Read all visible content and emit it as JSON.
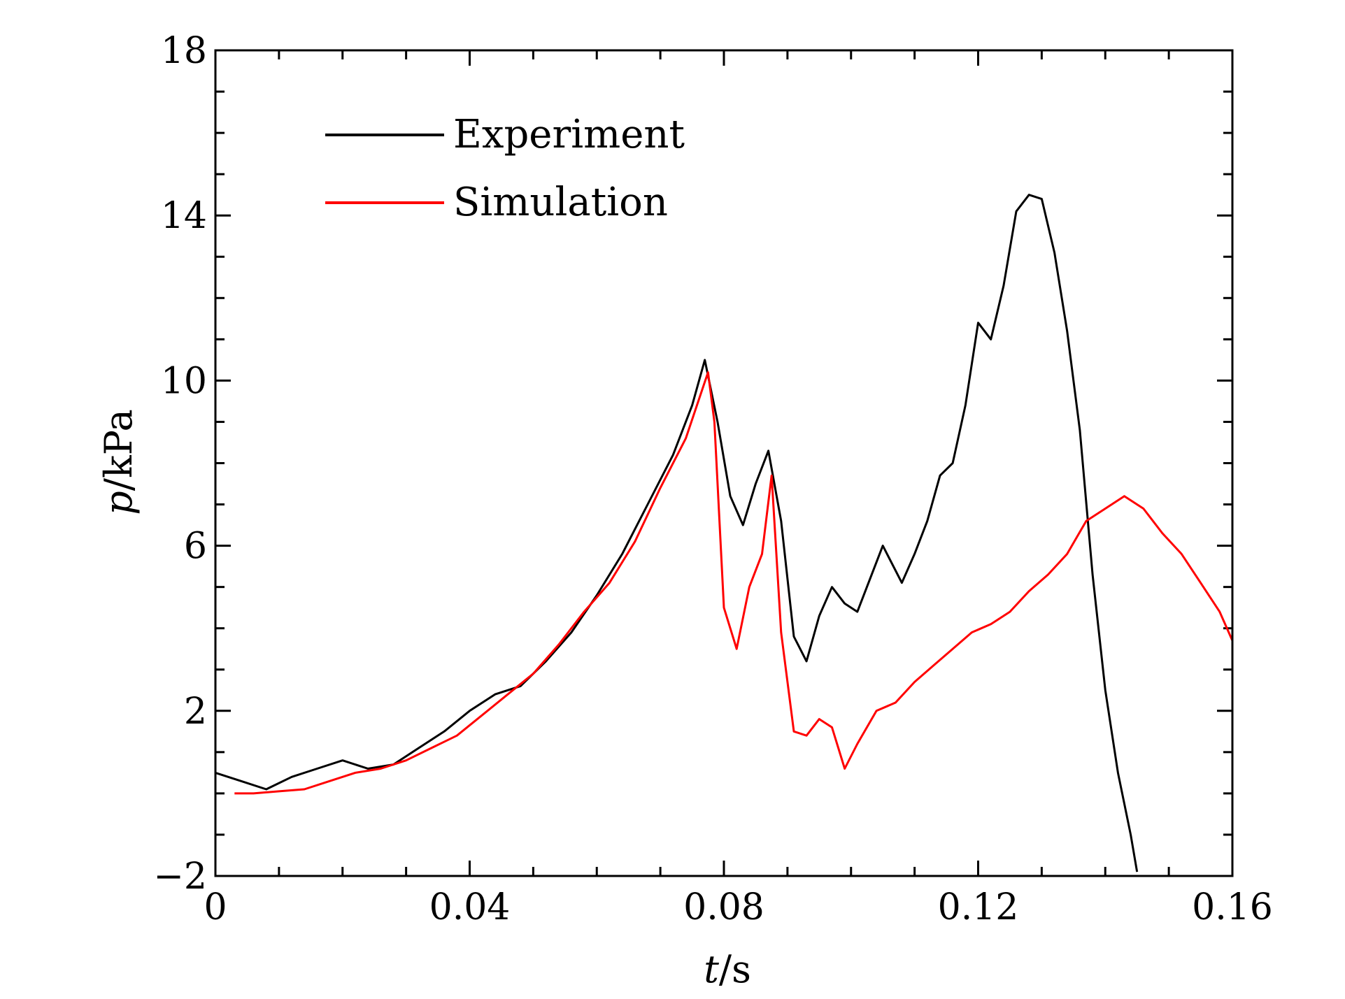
{
  "chart_data": {
    "type": "line",
    "title": "",
    "xlabel": {
      "symbol": "t",
      "unit": "/s"
    },
    "ylabel": {
      "symbol": "p",
      "unit": "/kPa"
    },
    "xlim": [
      0,
      0.16
    ],
    "ylim": [
      -2,
      18
    ],
    "x_ticks": [
      {
        "value": 0,
        "label": "0"
      },
      {
        "value": 0.04,
        "label": "0.04"
      },
      {
        "value": 0.08,
        "label": "0.08"
      },
      {
        "value": 0.12,
        "label": "0.12"
      },
      {
        "value": 0.16,
        "label": "0.16"
      }
    ],
    "y_ticks": [
      {
        "value": -2,
        "label": "−2"
      },
      {
        "value": 2,
        "label": "2"
      },
      {
        "value": 6,
        "label": "6"
      },
      {
        "value": 10,
        "label": "10"
      },
      {
        "value": 14,
        "label": "14"
      },
      {
        "value": 18,
        "label": "18"
      }
    ],
    "x_minor_step": 0.01,
    "y_minor_step": 1,
    "grid": false,
    "legend_position": "top-left",
    "series": [
      {
        "name": "Experiment",
        "color": "#000000",
        "x": [
          0,
          0.004,
          0.008,
          0.012,
          0.016,
          0.02,
          0.024,
          0.028,
          0.032,
          0.036,
          0.04,
          0.044,
          0.048,
          0.052,
          0.056,
          0.06,
          0.064,
          0.068,
          0.072,
          0.075,
          0.077,
          0.079,
          0.081,
          0.083,
          0.085,
          0.087,
          0.089,
          0.091,
          0.093,
          0.095,
          0.097,
          0.099,
          0.101,
          0.103,
          0.105,
          0.108,
          0.11,
          0.112,
          0.114,
          0.116,
          0.118,
          0.12,
          0.122,
          0.124,
          0.126,
          0.128,
          0.13,
          0.132,
          0.134,
          0.136,
          0.138,
          0.14,
          0.142,
          0.144,
          0.145
        ],
        "y": [
          0.5,
          0.3,
          0.1,
          0.4,
          0.6,
          0.8,
          0.6,
          0.7,
          1.1,
          1.5,
          2.0,
          2.4,
          2.6,
          3.2,
          3.9,
          4.8,
          5.8,
          7.0,
          8.2,
          9.4,
          10.5,
          9.0,
          7.2,
          6.5,
          7.5,
          8.3,
          6.6,
          3.8,
          3.2,
          4.3,
          5.0,
          4.6,
          4.4,
          5.2,
          6.0,
          5.1,
          5.8,
          6.6,
          7.7,
          8.0,
          9.4,
          11.4,
          11.0,
          12.3,
          14.1,
          14.5,
          14.4,
          13.1,
          11.2,
          8.8,
          5.3,
          2.5,
          0.5,
          -1.0,
          -1.9
        ]
      },
      {
        "name": "Simulation",
        "color": "#ff0000",
        "x": [
          0.003,
          0.006,
          0.01,
          0.014,
          0.018,
          0.022,
          0.026,
          0.03,
          0.034,
          0.038,
          0.042,
          0.046,
          0.05,
          0.054,
          0.058,
          0.062,
          0.066,
          0.07,
          0.074,
          0.0775,
          0.0785,
          0.08,
          0.082,
          0.084,
          0.086,
          0.0875,
          0.089,
          0.091,
          0.093,
          0.095,
          0.097,
          0.099,
          0.101,
          0.104,
          0.107,
          0.11,
          0.113,
          0.116,
          0.119,
          0.122,
          0.125,
          0.128,
          0.131,
          0.134,
          0.137,
          0.14,
          0.143,
          0.146,
          0.149,
          0.152,
          0.155,
          0.158,
          0.16
        ],
        "y": [
          0.0,
          0.0,
          0.05,
          0.1,
          0.3,
          0.5,
          0.6,
          0.8,
          1.1,
          1.4,
          1.9,
          2.4,
          2.9,
          3.6,
          4.4,
          5.1,
          6.1,
          7.4,
          8.6,
          10.2,
          9.0,
          4.5,
          3.5,
          5.0,
          5.8,
          7.7,
          3.9,
          1.5,
          1.4,
          1.8,
          1.6,
          0.6,
          1.2,
          2.0,
          2.2,
          2.7,
          3.1,
          3.5,
          3.9,
          4.1,
          4.4,
          4.9,
          5.3,
          5.8,
          6.6,
          6.9,
          7.2,
          6.9,
          6.3,
          5.8,
          5.1,
          4.4,
          3.7
        ]
      }
    ]
  }
}
